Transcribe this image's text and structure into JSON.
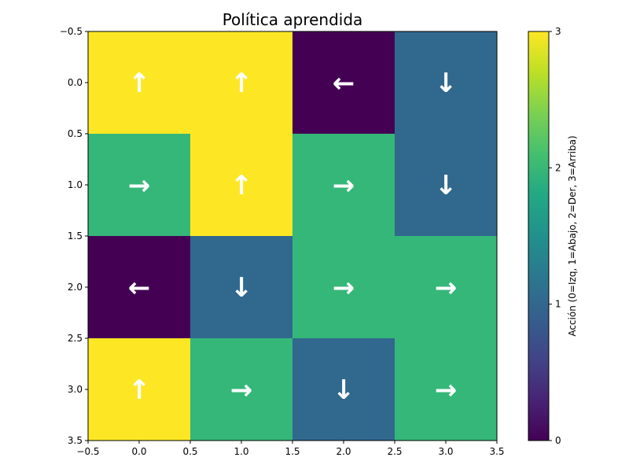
{
  "chart_data": {
    "type": "heatmap",
    "title": "Política aprendida",
    "xlabel": "",
    "ylabel": "",
    "xlim": [
      -0.5,
      3.5
    ],
    "ylim": [
      3.5,
      -0.5
    ],
    "x_ticks": [
      "−0.5",
      "0.0",
      "0.5",
      "1.0",
      "1.5",
      "2.0",
      "2.5",
      "3.0",
      "3.5"
    ],
    "y_ticks": [
      "−0.5",
      "0.0",
      "0.5",
      "1.0",
      "1.5",
      "2.0",
      "2.5",
      "3.0",
      "3.5"
    ],
    "values": [
      [
        3,
        3,
        0,
        1
      ],
      [
        2,
        3,
        2,
        1
      ],
      [
        0,
        1,
        2,
        2
      ],
      [
        3,
        2,
        1,
        2
      ]
    ],
    "arrows": [
      [
        "↑",
        "↑",
        "←",
        "↓"
      ],
      [
        "→",
        "↑",
        "→",
        "↓"
      ],
      [
        "←",
        "↓",
        "→",
        "→"
      ],
      [
        "↑",
        "→",
        "↓",
        "→"
      ]
    ],
    "colormap": "viridis",
    "colors": {
      "0": "#440154",
      "1": "#31688e",
      "2": "#35b779",
      "3": "#fde725"
    },
    "colorbar": {
      "label": "Acción (0=Izq, 1=Abajo, 2=Der, 3=Arriba)",
      "range": [
        0,
        3
      ],
      "ticks": [
        "0",
        "1",
        "2",
        "3"
      ]
    },
    "grid": false
  }
}
